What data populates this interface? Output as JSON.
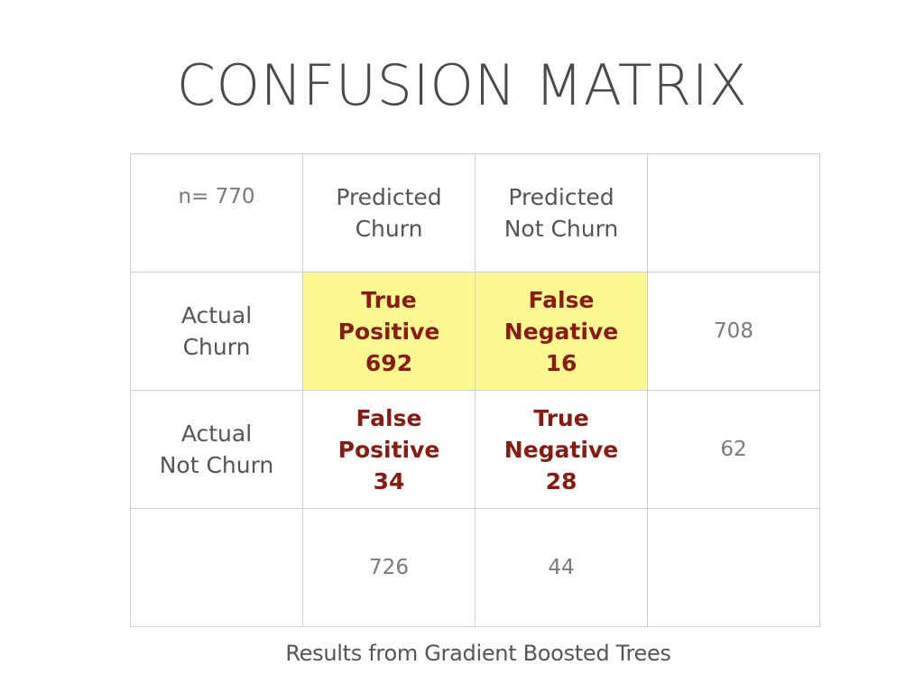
{
  "title": "CONFUSION MATRIX",
  "matrix": {
    "n_label": "n= 770",
    "col_headers": [
      {
        "line1": "Predicted",
        "line2": "Churn"
      },
      {
        "line1": "Predicted",
        "line2": "Not Churn"
      }
    ],
    "row_headers": [
      {
        "line1": "Actual",
        "line2": "Churn"
      },
      {
        "line1": "Actual",
        "line2": "Not Churn"
      }
    ],
    "cells": [
      [
        {
          "line1": "True",
          "line2": "Positive",
          "value": "692"
        },
        {
          "line1": "False",
          "line2": "Negative",
          "value": "16"
        }
      ],
      [
        {
          "line1": "False",
          "line2": "Positive",
          "value": "34"
        },
        {
          "line1": "True",
          "line2": "Negative",
          "value": "28"
        }
      ]
    ],
    "row_totals": [
      "708",
      "62"
    ],
    "col_totals": [
      "726",
      "44"
    ]
  },
  "caption": "Results from Gradient Boosted Trees",
  "colors": {
    "highlight": "#fbf98f",
    "cell_text": "#8b1a10",
    "grid": "#cfcfcf"
  }
}
